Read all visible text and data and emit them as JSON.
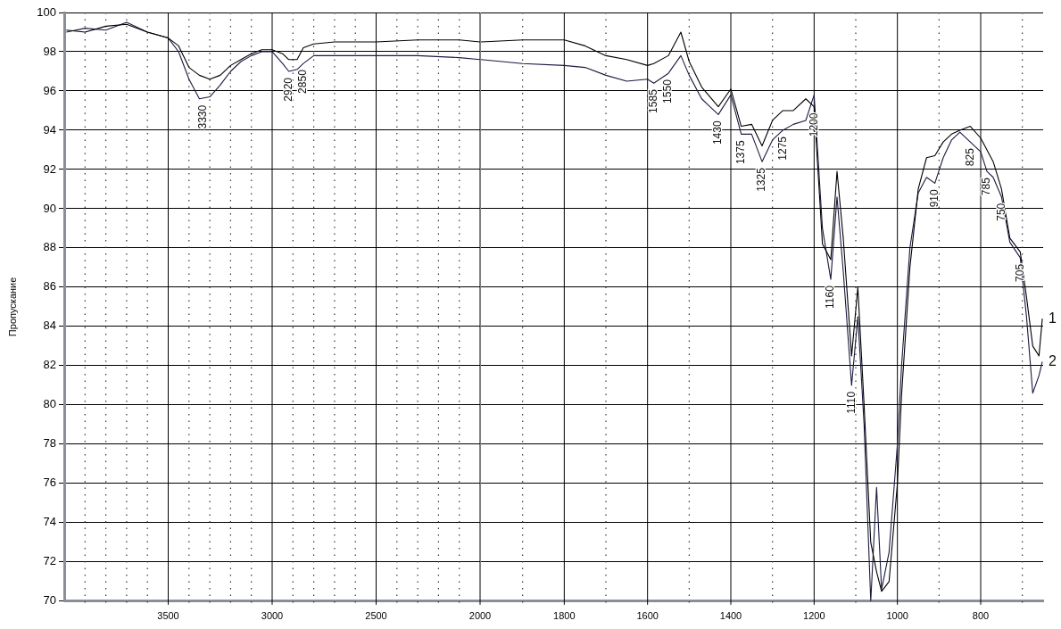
{
  "chart_data": [
    {
      "type": "line",
      "ylabel": "Пропускание",
      "xlim": [
        4000,
        2000
      ],
      "ylim": [
        70,
        100
      ],
      "xticks": [
        {
          "value": 3900,
          "label": null
        },
        {
          "value": 3800,
          "label": null
        },
        {
          "value": 3700,
          "label": null
        },
        {
          "value": 3600,
          "label": null
        },
        3500,
        {
          "value": 3400,
          "label": null
        },
        {
          "value": 3300,
          "label": null
        },
        {
          "value": 3200,
          "label": null
        },
        {
          "value": 3100,
          "label": null
        },
        3000,
        {
          "value": 2900,
          "label": null
        },
        {
          "value": 2800,
          "label": null
        },
        {
          "value": 2700,
          "label": null
        },
        {
          "value": 2600,
          "label": null
        },
        2500,
        {
          "value": 2400,
          "label": null
        },
        {
          "value": 2300,
          "label": null
        },
        {
          "value": 2200,
          "label": null
        },
        {
          "value": 2100,
          "label": null
        },
        2000
      ],
      "yticks": [
        70,
        72,
        74,
        76,
        78,
        80,
        82,
        84,
        86,
        88,
        90,
        92,
        94,
        96,
        98,
        100
      ],
      "grid": true,
      "legend": false,
      "marker": "none",
      "line_style": "solid",
      "x": [
        3990,
        3900,
        3800,
        3700,
        3600,
        3500,
        3450,
        3400,
        3350,
        3300,
        3250,
        3200,
        3150,
        3100,
        3050,
        3000,
        2950,
        2920,
        2880,
        2850,
        2800,
        2700,
        2500,
        2300,
        2100,
        2000
      ],
      "series": [
        {
          "color": "#000000",
          "values": [
            99.1,
            99.0,
            99.3,
            99.4,
            99.0,
            98.7,
            98.3,
            97.2,
            96.8,
            96.6,
            96.8,
            97.3,
            97.6,
            97.9,
            98.1,
            98.1,
            97.9,
            97.6,
            97.6,
            98.2,
            98.4,
            98.5,
            98.5,
            98.6,
            98.6,
            98.5
          ]
        },
        {
          "color": "#1a1a40",
          "values": [
            99.0,
            99.2,
            99.1,
            99.5,
            99.0,
            98.7,
            98.0,
            96.6,
            95.6,
            95.7,
            96.3,
            97.0,
            97.5,
            97.8,
            98.0,
            98.0,
            97.4,
            97.0,
            97.1,
            97.4,
            97.8,
            97.8,
            97.8,
            97.8,
            97.7,
            97.6
          ]
        }
      ],
      "annotations": [
        {
          "text": "3330",
          "x": 3330,
          "y": 95.6
        },
        {
          "text": "2920",
          "x": 2920,
          "y": 97.0
        },
        {
          "text": "2850",
          "x": 2850,
          "y": 97.4
        }
      ]
    },
    {
      "type": "line",
      "tick_labels": "x",
      "xlim": [
        2000,
        650
      ],
      "ylim": [
        70,
        100
      ],
      "xticks": [
        {
          "value": 1900,
          "label": null
        },
        1800,
        {
          "value": 1700,
          "label": null
        },
        1600,
        {
          "value": 1500,
          "label": null
        },
        1400,
        {
          "value": 1300,
          "label": null
        },
        1200,
        {
          "value": 1100,
          "label": null
        },
        1000,
        {
          "value": 900,
          "label": null
        },
        800,
        {
          "value": 700,
          "label": null
        }
      ],
      "yticks": [
        70,
        72,
        74,
        76,
        78,
        80,
        82,
        84,
        86,
        88,
        90,
        92,
        94,
        96,
        98,
        100
      ],
      "grid": true,
      "legend": false,
      "marker": "none",
      "line_style": "solid",
      "x": [
        2000,
        1900,
        1800,
        1750,
        1700,
        1650,
        1600,
        1585,
        1550,
        1520,
        1500,
        1470,
        1450,
        1430,
        1400,
        1375,
        1350,
        1325,
        1300,
        1275,
        1250,
        1220,
        1200,
        1180,
        1160,
        1145,
        1130,
        1110,
        1095,
        1080,
        1064,
        1050,
        1038,
        1020,
        1000,
        990,
        970,
        950,
        930,
        910,
        890,
        870,
        850,
        825,
        800,
        785,
        770,
        750,
        730,
        705,
        690,
        675,
        660,
        652
      ],
      "series": [
        {
          "name": "1",
          "color": "#000000",
          "values": [
            98.5,
            98.6,
            98.6,
            98.3,
            97.8,
            97.6,
            97.3,
            97.4,
            97.8,
            99.0,
            97.5,
            96.2,
            95.7,
            95.2,
            96.1,
            94.2,
            94.3,
            93.2,
            94.5,
            95.0,
            95.0,
            95.6,
            95.2,
            88.2,
            87.4,
            91.9,
            88.5,
            82.5,
            86.0,
            80.0,
            73.0,
            71.5,
            70.5,
            71.0,
            76.0,
            80.5,
            87.0,
            91.0,
            92.6,
            92.7,
            93.4,
            93.8,
            94.0,
            94.2,
            93.6,
            93.0,
            92.4,
            91.0,
            88.5,
            87.8,
            85.5,
            83.0,
            82.5,
            84.4
          ]
        },
        {
          "name": "2",
          "color": "#1a1a40",
          "values": [
            97.6,
            97.4,
            97.3,
            97.2,
            96.8,
            96.5,
            96.6,
            96.4,
            96.9,
            97.8,
            96.8,
            95.6,
            95.2,
            94.8,
            95.8,
            93.8,
            93.8,
            92.4,
            93.5,
            94.0,
            94.3,
            94.5,
            95.8,
            89.0,
            86.4,
            90.6,
            86.8,
            81.0,
            84.5,
            79.0,
            70.0,
            75.8,
            70.6,
            72.5,
            78.0,
            82.0,
            88.0,
            90.8,
            91.6,
            91.3,
            92.6,
            93.5,
            93.9,
            93.4,
            92.9,
            91.9,
            91.6,
            90.6,
            88.3,
            87.5,
            84.5,
            80.6,
            81.5,
            82.2
          ]
        }
      ],
      "annotations": [
        {
          "text": "1585",
          "x": 1585,
          "y": 96.4
        },
        {
          "text": "1550",
          "x": 1550,
          "y": 96.9
        },
        {
          "text": "1430",
          "x": 1430,
          "y": 94.8
        },
        {
          "text": "1375",
          "x": 1375,
          "y": 93.8
        },
        {
          "text": "1325",
          "x": 1325,
          "y": 92.4
        },
        {
          "text": "1275",
          "x": 1275,
          "y": 94.0
        },
        {
          "text": "1200",
          "x": 1200,
          "y": 95.2
        },
        {
          "text": "1160",
          "x": 1160,
          "y": 86.4
        },
        {
          "text": "1110",
          "x": 1110,
          "y": 81.0
        },
        {
          "text": "910",
          "x": 910,
          "y": 91.3
        },
        {
          "text": "825",
          "x": 825,
          "y": 93.4
        },
        {
          "text": "785",
          "x": 785,
          "y": 91.9
        },
        {
          "text": "750",
          "x": 750,
          "y": 90.6
        },
        {
          "text": "705",
          "x": 705,
          "y": 87.5
        }
      ]
    }
  ]
}
